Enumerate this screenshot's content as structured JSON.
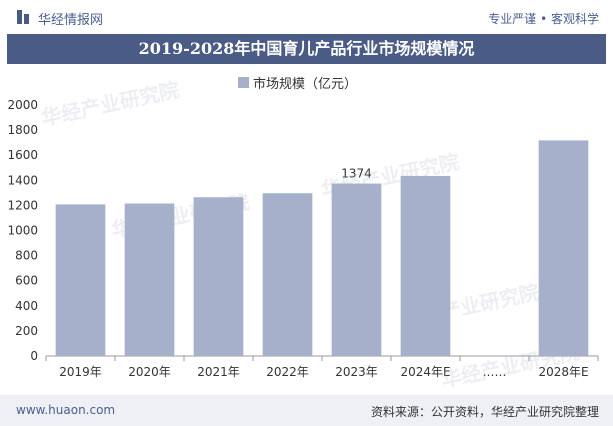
{
  "header": {
    "brand": "华经情报网",
    "slogan": "专业严谨 • 客观科学"
  },
  "chart_data": {
    "type": "bar",
    "title": "2019-2028年中国育儿产品行业市场规模情况",
    "legend": [
      "市场规模（亿元）"
    ],
    "categories": [
      "2019年",
      "2020年",
      "2021年",
      "2022年",
      "2023年",
      "2024年E",
      "……",
      "2028年E"
    ],
    "values": [
      1208,
      1215,
      1265,
      1297,
      1374,
      1435,
      null,
      1718
    ],
    "data_labels": {
      "2023年": "1374"
    },
    "ylim": [
      0,
      2000
    ],
    "yticks": [
      0,
      200,
      400,
      600,
      800,
      1000,
      1200,
      1400,
      1600,
      1800,
      2000
    ],
    "bar_color": "#a6b0cb",
    "grid": false,
    "legend_position": "top"
  },
  "watermark": {
    "text": "华经产业研究院",
    "url": "www.huaon.com"
  },
  "footer": {
    "site": "www.huaon.com",
    "source": "资料来源：公开资料，华经产业研究院整理"
  }
}
